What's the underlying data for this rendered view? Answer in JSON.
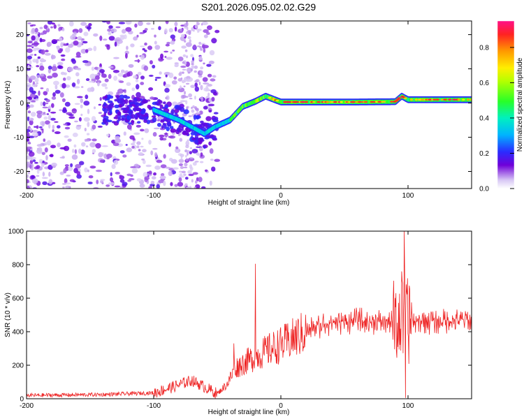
{
  "figure": {
    "title": "S201.2026.095.02.02.G29"
  },
  "chart_data": [
    {
      "type": "heatmap",
      "title": "S201.2026.095.02.02.G29",
      "xlabel": "Height of straight line (km)",
      "ylabel": "Frequency (Hz)",
      "xlim": [
        -200,
        150
      ],
      "ylim": [
        -25,
        24
      ],
      "xticks": [
        -200,
        -100,
        0,
        100
      ],
      "yticks": [
        -20,
        -10,
        0,
        10,
        20
      ],
      "colorbar": {
        "label": "Normalized spectral amplitude",
        "range": [
          0,
          0.95
        ],
        "ticks": [
          0.0,
          0.2,
          0.4,
          0.6,
          0.8
        ]
      },
      "ridge": {
        "description_points": [
          {
            "x": -100,
            "y": -2
          },
          {
            "x": -80,
            "y": -5
          },
          {
            "x": -60,
            "y": -9
          },
          {
            "x": -52,
            "y": -7
          },
          {
            "x": -40,
            "y": -5
          },
          {
            "x": -30,
            "y": -1
          },
          {
            "x": -20,
            "y": 0.5
          },
          {
            "x": -12,
            "y": 2
          },
          {
            "x": 0,
            "y": 0.3
          },
          {
            "x": 20,
            "y": 0.3
          },
          {
            "x": 60,
            "y": 0.3
          },
          {
            "x": 90,
            "y": 0.4
          },
          {
            "x": 95,
            "y": 2
          },
          {
            "x": 100,
            "y": 1
          },
          {
            "x": 150,
            "y": 1
          }
        ]
      }
    },
    {
      "type": "line",
      "xlabel": "Height of straight line (km)",
      "ylabel": "SNR (10 * v/v)",
      "xlim": [
        -200,
        150
      ],
      "ylim": [
        0,
        1000
      ],
      "xticks": [
        -200,
        -100,
        0,
        100
      ],
      "yticks": [
        0,
        200,
        400,
        600,
        800,
        1000
      ],
      "series": [
        {
          "name": "SNR",
          "color": "#ee2222",
          "envelope": [
            {
              "x": -200,
              "y": 20
            },
            {
              "x": -140,
              "y": 25
            },
            {
              "x": -100,
              "y": 35
            },
            {
              "x": -85,
              "y": 70
            },
            {
              "x": -70,
              "y": 110
            },
            {
              "x": -60,
              "y": 70
            },
            {
              "x": -50,
              "y": 30
            },
            {
              "x": -42,
              "y": 90
            },
            {
              "x": -36,
              "y": 180
            },
            {
              "x": -30,
              "y": 210
            },
            {
              "x": -20,
              "y": 250
            },
            {
              "x": -10,
              "y": 290
            },
            {
              "x": 0,
              "y": 320
            },
            {
              "x": 10,
              "y": 360
            },
            {
              "x": 20,
              "y": 400
            },
            {
              "x": 30,
              "y": 440
            },
            {
              "x": 40,
              "y": 460
            },
            {
              "x": 60,
              "y": 460
            },
            {
              "x": 80,
              "y": 460
            },
            {
              "x": 100,
              "y": 460
            },
            {
              "x": 120,
              "y": 465
            },
            {
              "x": 150,
              "y": 470
            }
          ],
          "spikes": [
            {
              "x": -20,
              "y": 805
            },
            {
              "x": -37,
              "y": 330
            },
            {
              "x": 97,
              "y": 1000
            },
            {
              "x": 98,
              "y": 5
            },
            {
              "x": 95,
              "y": 760
            }
          ]
        }
      ]
    }
  ]
}
